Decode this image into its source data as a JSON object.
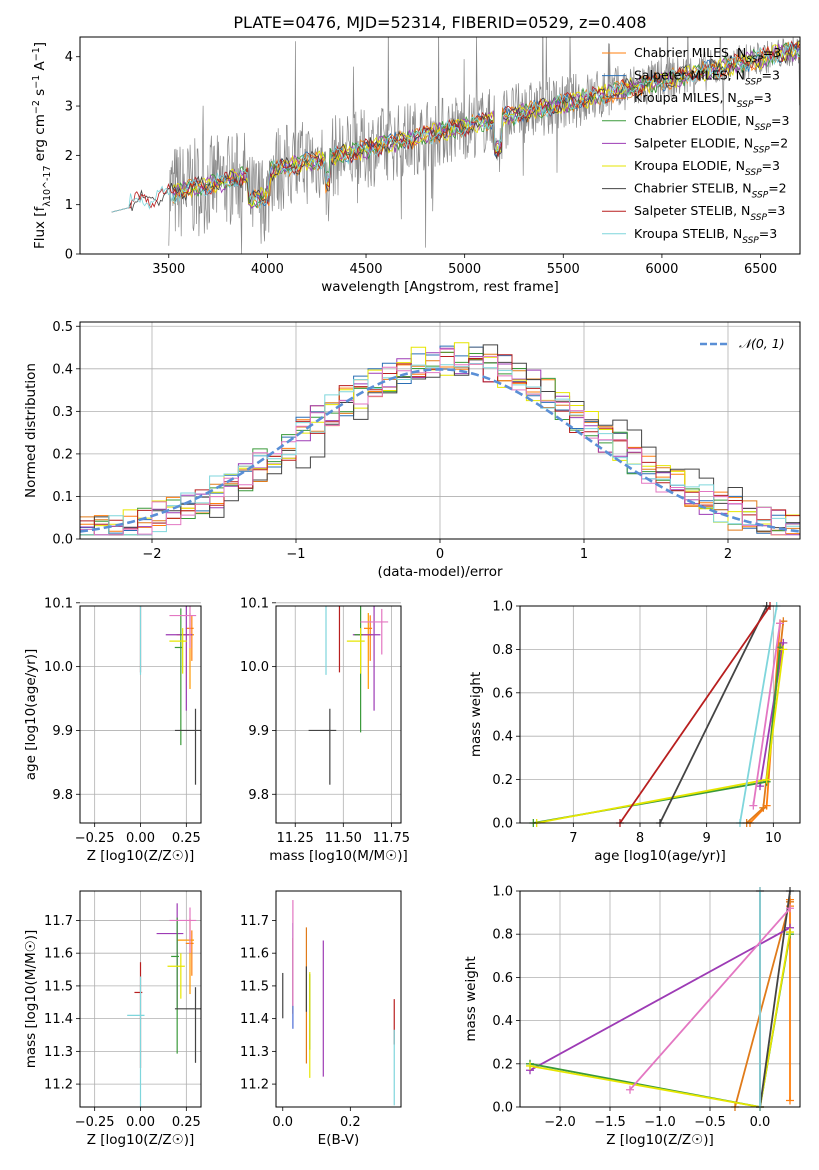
{
  "colors": [
    "#ff7f0e",
    "#ff9900",
    "#e07b1a",
    "#3a9a3a",
    "#9d3bb5",
    "#e6e600",
    "#444444",
    "#b81f1f",
    "#7fd6dc"
  ],
  "spectrum_colors": [
    "#ff7f0e",
    "#e87d2a",
    "#ff9933",
    "#4c8c4a",
    "#9b59b6",
    "#f0e442",
    "#555555",
    "#b22222",
    "#80d0d8",
    "#888888"
  ],
  "chart_data": [
    {
      "id": "spectrum",
      "type": "line",
      "title": "PLATE=0476, MJD=52314, FIBERID=0529, z=0.408",
      "xlabel": "wavelength [Angstrom, rest frame]",
      "ylabel": "Flux [f_λ10^-17 erg cm^-2 s^-1 A^-1]",
      "xlim": [
        3050,
        6700
      ],
      "ylim": [
        0,
        4.4
      ],
      "xticks": [
        3500,
        4000,
        4500,
        5000,
        5500,
        6000,
        6500
      ],
      "yticks": [
        0,
        1,
        2,
        3,
        4
      ],
      "grid": false,
      "legend_position": "top-right",
      "legend": [
        {
          "name": "Chabrier MILES",
          "nssp": "3",
          "color": "#ff7f0e"
        },
        {
          "name": "Salpeter MILES",
          "nssp": "3",
          "color": "#2a6fb5"
        },
        {
          "name": "Kroupa MILES",
          "nssp": "3",
          "color": "#e07b1a"
        },
        {
          "name": "Chabrier ELODIE",
          "nssp": "3",
          "color": "#3a9a3a"
        },
        {
          "name": "Salpeter ELODIE",
          "nssp": "2",
          "color": "#9d3bb5"
        },
        {
          "name": "Kroupa ELODIE",
          "nssp": "3",
          "color": "#e6e600"
        },
        {
          "name": "Chabrier STELIB",
          "nssp": "2",
          "color": "#444444"
        },
        {
          "name": "Salpeter STELIB",
          "nssp": "3",
          "color": "#b81f1f"
        },
        {
          "name": "Kroupa STELIB",
          "nssp": "3",
          "color": "#7fd6dc"
        }
      ]
    },
    {
      "id": "residuals",
      "type": "line",
      "xlabel": "(data-model)/error",
      "ylabel": "Normed distribution",
      "xlim": [
        -2.5,
        2.5
      ],
      "ylim": [
        0,
        0.51
      ],
      "xticks": [
        -2,
        -1,
        0,
        1,
        2
      ],
      "yticks": [
        0.0,
        0.1,
        0.2,
        0.3,
        0.4,
        0.5
      ],
      "grid": true,
      "legend_position": "top-right",
      "legend": [
        {
          "name": "𝒩(0, 1)",
          "color": "#5a8fd6"
        }
      ],
      "gaussian": {
        "mu": 0,
        "sigma": 1
      }
    },
    {
      "id": "z-age",
      "type": "scatter",
      "xlabel": "Z [log10(Z/Z☉)]",
      "ylabel": "age [log10(age/yr)]",
      "xlim": [
        -0.33,
        0.33
      ],
      "ylim": [
        9.755,
        10.095
      ],
      "xticks": [
        -0.25,
        0.0,
        0.25
      ],
      "yticks": [
        9.8,
        9.9,
        10.0,
        10.1
      ],
      "grid": true,
      "points": [
        {
          "x": 0.28,
          "y": 10.06,
          "c": "#ff7f0e"
        },
        {
          "x": 0.27,
          "y": 10.05,
          "c": "#ff9900"
        },
        {
          "x": 0.25,
          "y": 10.05,
          "c": "#9d3bb5"
        },
        {
          "x": 0.22,
          "y": 10.03,
          "c": "#3a9a3a"
        },
        {
          "x": 0.23,
          "y": 10.04,
          "c": "#e6e600"
        },
        {
          "x": 0.3,
          "y": 9.9,
          "c": "#444444"
        },
        {
          "x": 0.0,
          "y": 10.11,
          "c": "#b81f1f"
        },
        {
          "x": 0.0,
          "y": 10.14,
          "c": "#7fd6dc"
        },
        {
          "x": 0.27,
          "y": 10.08,
          "c": "#e377c2"
        }
      ]
    },
    {
      "id": "mass-age",
      "type": "scatter",
      "xlabel": "mass [log10(M/M☉)]",
      "ylabel": "",
      "xlim": [
        11.15,
        11.8
      ],
      "ylim": [
        9.755,
        10.095
      ],
      "xticks": [
        11.25,
        11.5,
        11.75
      ],
      "yticks": [
        9.8,
        9.9,
        10.0,
        10.1
      ],
      "grid": true,
      "points": [
        {
          "x": 11.64,
          "y": 10.06,
          "c": "#ff7f0e"
        },
        {
          "x": 11.63,
          "y": 10.05,
          "c": "#ff9900"
        },
        {
          "x": 11.66,
          "y": 10.05,
          "c": "#9d3bb5"
        },
        {
          "x": 11.59,
          "y": 10.05,
          "c": "#3a9a3a"
        },
        {
          "x": 11.59,
          "y": 10.04,
          "c": "#e6e600"
        },
        {
          "x": 11.43,
          "y": 9.9,
          "c": "#444444"
        },
        {
          "x": 11.48,
          "y": 10.11,
          "c": "#b81f1f"
        },
        {
          "x": 11.41,
          "y": 10.14,
          "c": "#7fd6dc"
        },
        {
          "x": 11.7,
          "y": 10.07,
          "c": "#e377c2"
        }
      ]
    },
    {
      "id": "age-weight",
      "type": "line",
      "xlabel": "age [log10(age/yr)]",
      "ylabel": "mass weight",
      "xlim": [
        6.2,
        10.4
      ],
      "ylim": [
        0,
        1.0
      ],
      "xticks": [
        7,
        8,
        9,
        10
      ],
      "yticks": [
        0.0,
        0.2,
        0.4,
        0.6,
        0.8,
        1.0
      ],
      "grid": true,
      "series": [
        {
          "c": "#ff7f0e",
          "x": [
            9.65,
            9.9,
            10.1
          ],
          "y": [
            0.0,
            0.08,
            0.92
          ]
        },
        {
          "c": "#e07b1a",
          "x": [
            9.6,
            9.85,
            10.15
          ],
          "y": [
            0.0,
            0.07,
            0.93
          ]
        },
        {
          "c": "#9d3bb5",
          "x": [
            9.8,
            10.15
          ],
          "y": [
            0.17,
            0.83
          ]
        },
        {
          "c": "#3a9a3a",
          "x": [
            6.4,
            9.9,
            10.1
          ],
          "y": [
            0.0,
            0.19,
            0.81
          ]
        },
        {
          "c": "#e6e600",
          "x": [
            6.45,
            9.9,
            10.15
          ],
          "y": [
            0.0,
            0.2,
            0.8
          ]
        },
        {
          "c": "#444444",
          "x": [
            8.3,
            9.9
          ],
          "y": [
            0.0,
            1.0
          ]
        },
        {
          "c": "#b81f1f",
          "x": [
            7.7,
            9.95
          ],
          "y": [
            0.0,
            1.0
          ]
        },
        {
          "c": "#7fd6dc",
          "x": [
            9.5,
            10.05
          ],
          "y": [
            0.0,
            1.0
          ]
        },
        {
          "c": "#e377c2",
          "x": [
            9.7,
            10.1
          ],
          "y": [
            0.08,
            0.92
          ]
        }
      ]
    },
    {
      "id": "z-mass",
      "type": "scatter",
      "xlabel": "Z [log10(Z/Z☉)]",
      "ylabel": "mass [log10(M/M☉)]",
      "xlim": [
        -0.33,
        0.33
      ],
      "ylim": [
        11.13,
        11.79
      ],
      "xticks": [
        -0.25,
        0.0,
        0.25
      ],
      "yticks": [
        11.2,
        11.3,
        11.4,
        11.5,
        11.6,
        11.7
      ],
      "grid": true,
      "points": [
        {
          "x": 0.28,
          "y": 11.63,
          "c": "#ff7f0e"
        },
        {
          "x": 0.27,
          "y": 11.64,
          "c": "#ff9900"
        },
        {
          "x": 0.2,
          "y": 11.66,
          "c": "#9d3bb5"
        },
        {
          "x": 0.2,
          "y": 11.59,
          "c": "#3a9a3a"
        },
        {
          "x": 0.22,
          "y": 11.56,
          "c": "#e6e600"
        },
        {
          "x": 0.3,
          "y": 11.43,
          "c": "#444444"
        },
        {
          "x": 0.0,
          "y": 11.48,
          "c": "#b81f1f"
        },
        {
          "x": 0.0,
          "y": 11.41,
          "c": "#7fd6dc"
        },
        {
          "x": 0.27,
          "y": 11.7,
          "c": "#e377c2"
        }
      ]
    },
    {
      "id": "ebv-mass",
      "type": "scatter",
      "xlabel": "E(B-V)",
      "ylabel": "",
      "xlim": [
        -0.02,
        0.35
      ],
      "ylim": [
        11.13,
        11.79
      ],
      "xticks": [
        0.0,
        0.2
      ],
      "yticks": [
        11.2,
        11.3,
        11.4,
        11.5,
        11.6,
        11.7
      ],
      "grid": false,
      "points": [
        {
          "x": 0.0,
          "y": 11.5,
          "c": "#444444"
        },
        {
          "x": 0.03,
          "y": 11.58,
          "c": "#ff7f0e"
        },
        {
          "x": 0.03,
          "y": 11.6,
          "c": "#4c6cd6"
        },
        {
          "x": 0.07,
          "y": 11.56,
          "c": "#e07b1a"
        },
        {
          "x": 0.07,
          "y": 11.52,
          "c": "#444444"
        },
        {
          "x": 0.08,
          "y": 11.47,
          "c": "#3a9a3a"
        },
        {
          "x": 0.08,
          "y": 11.45,
          "c": "#e6e600"
        },
        {
          "x": 0.12,
          "y": 11.52,
          "c": "#9d3bb5"
        },
        {
          "x": 0.33,
          "y": 11.42,
          "c": "#b81f1f"
        },
        {
          "x": 0.33,
          "y": 11.3,
          "c": "#7fd6dc"
        },
        {
          "x": 0.03,
          "y": 11.67,
          "c": "#e377c2"
        }
      ]
    },
    {
      "id": "z-weight",
      "type": "line",
      "xlabel": "Z [log10(Z/Z☉)]",
      "ylabel": "mass weight",
      "xlim": [
        -2.4,
        0.4
      ],
      "ylim": [
        0,
        1.0
      ],
      "xticks": [
        -2.0,
        -1.5,
        -1.0,
        -0.5,
        0.0
      ],
      "yticks": [
        0.0,
        0.2,
        0.4,
        0.6,
        0.8,
        1.0
      ],
      "grid": true,
      "series": [
        {
          "c": "#ff7f0e",
          "x": [
            0.3,
            0.3,
            0.3
          ],
          "y": [
            0.03,
            0.93,
            0.96
          ]
        },
        {
          "c": "#e07b1a",
          "x": [
            -0.25,
            0.3
          ],
          "y": [
            0.0,
            0.95
          ]
        },
        {
          "c": "#9d3bb5",
          "x": [
            -2.3,
            0.3
          ],
          "y": [
            0.17,
            0.83
          ]
        },
        {
          "c": "#3a9a3a",
          "x": [
            -2.3,
            0.0,
            0.3
          ],
          "y": [
            0.2,
            0.0,
            0.8
          ]
        },
        {
          "c": "#e6e600",
          "x": [
            -2.3,
            0.0,
            0.3
          ],
          "y": [
            0.19,
            0.0,
            0.81
          ]
        },
        {
          "c": "#444444",
          "x": [
            0.0,
            0.3
          ],
          "y": [
            0.0,
            1.0
          ]
        },
        {
          "c": "#b81f1f",
          "x": [
            0.0,
            0.0
          ],
          "y": [
            0.0,
            1.0
          ]
        },
        {
          "c": "#7fd6dc",
          "x": [
            0.0,
            0.0
          ],
          "y": [
            0.0,
            1.0
          ]
        },
        {
          "c": "#e377c2",
          "x": [
            -1.3,
            0.3
          ],
          "y": [
            0.08,
            0.92
          ]
        }
      ]
    }
  ]
}
